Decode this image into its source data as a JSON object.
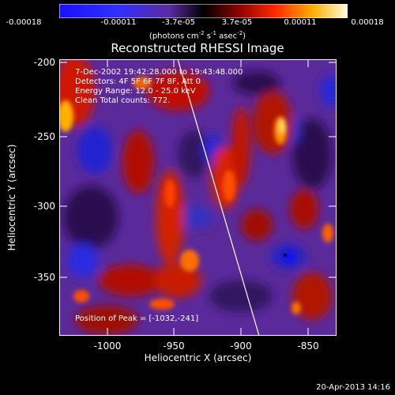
{
  "colorbar": {
    "ticks": [
      "-0.00018",
      "-0.00011",
      "-3.7e-05",
      "3.7e-05",
      "0.00011",
      "0.00018"
    ],
    "units_prefix": "(photons cm",
    "units_exp1": "-2",
    "units_mid": " s",
    "units_exp2": "-1",
    "units_mid2": " asec",
    "units_exp3": "-2",
    "units_suffix": ")"
  },
  "title": "Reconstructed RHESSI Image",
  "annotations": {
    "time_range": "7-Dec-2002 19:42:28.000 to 19:43:48.000",
    "detectors": "Detectors: 4F 5F 6F 7F 8F, Att 0",
    "energy": "Energy Range: 12.0 - 25.0 keV",
    "clean": "Clean    Total counts: 772.",
    "peak": "Position of Peak = [-1032,-241]"
  },
  "axes": {
    "xlabel": "Heliocentric X (arcsec)",
    "ylabel": "Heliocentric Y (arcsec)",
    "xticks": [
      "-1000",
      "-950",
      "-900",
      "-850"
    ],
    "yticks": [
      "-200",
      "-250",
      "-300",
      "-350"
    ]
  },
  "footer": "20-Apr-2013 14:16"
}
